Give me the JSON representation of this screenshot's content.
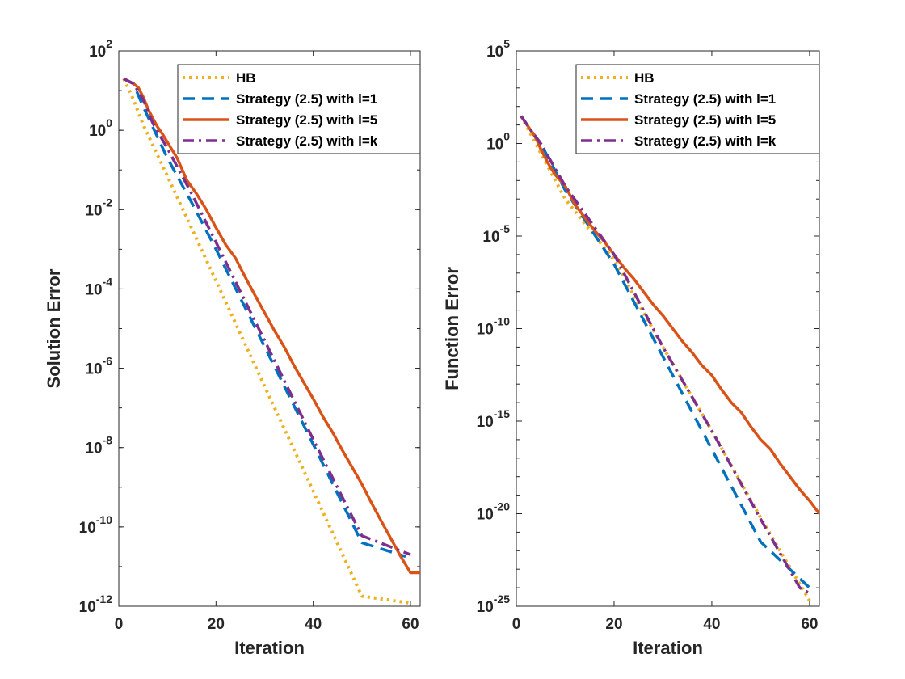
{
  "chart_data": [
    {
      "type": "line",
      "xlabel": "Iteration",
      "ylabel": "Solution Error",
      "xlim": [
        0,
        62
      ],
      "ylim": [
        1e-12,
        100
      ],
      "yscale": "log",
      "grid": false,
      "legend_position": "top-right",
      "xticks": [
        0,
        20,
        40,
        60
      ],
      "xtick_labels": [
        "0",
        "20",
        "40",
        "60"
      ],
      "yticks": [
        1e-12,
        1e-10,
        1e-08,
        1e-06,
        0.0001,
        0.01,
        1,
        100
      ],
      "ytick_labels": [
        {
          "base": "10",
          "exp": "-12"
        },
        {
          "base": "10",
          "exp": "-10"
        },
        {
          "base": "10",
          "exp": "-8"
        },
        {
          "base": "10",
          "exp": "-6"
        },
        {
          "base": "10",
          "exp": "-4"
        },
        {
          "base": "10",
          "exp": "-2"
        },
        {
          "base": "10",
          "exp": "0"
        },
        {
          "base": "10",
          "exp": "2"
        }
      ],
      "series": [
        {
          "name": "HB",
          "color": "#EDB120",
          "dash": "dotted",
          "x": [
            1,
            3,
            5,
            10,
            20,
            30,
            40,
            50,
            60
          ],
          "y": [
            20,
            6,
            1.4,
            0.07,
            0.00016,
            3.5e-07,
            8e-10,
            1.8e-12,
            1.2e-12
          ]
        },
        {
          "name": "Strategy (2.5) with l=1",
          "color": "#0072BD",
          "dash": "dashed",
          "x": [
            1,
            3,
            5,
            7,
            10,
            15,
            20,
            30,
            40,
            50,
            59
          ],
          "y": [
            20,
            15,
            4,
            1.2,
            0.2,
            0.015,
            0.001,
            3.5e-06,
            1.2e-08,
            4e-11,
            1.8e-11
          ]
        },
        {
          "name": "Strategy (2.5) with l=5",
          "color": "#D95319",
          "dash": "solid",
          "x": [
            1,
            2,
            3,
            4,
            5,
            6,
            7,
            8,
            9,
            10,
            12,
            14,
            16,
            18,
            20,
            22,
            24,
            26,
            28,
            30,
            32,
            34,
            36,
            38,
            40,
            42,
            44,
            46,
            48,
            50,
            52,
            54,
            56,
            58,
            60,
            62
          ],
          "y": [
            20,
            17,
            15,
            12,
            7,
            3.5,
            2.0,
            1.2,
            0.8,
            0.5,
            0.2,
            0.055,
            0.025,
            0.01,
            0.0035,
            0.0013,
            0.0006,
            0.0002,
            7e-05,
            2.5e-05,
            9e-06,
            3.5e-06,
            1.2e-06,
            4.5e-07,
            1.7e-07,
            6e-08,
            2.4e-08,
            8.5e-09,
            3.2e-09,
            1.2e-09,
            4e-10,
            1.4e-10,
            5e-11,
            1.8e-11,
            7e-12,
            7e-12
          ]
        },
        {
          "name": "Strategy (2.5) with l=k",
          "color": "#7E2F8E",
          "dash": "dashdot",
          "x": [
            1,
            3,
            5,
            7,
            10,
            15,
            20,
            30,
            40,
            50,
            58,
            60
          ],
          "y": [
            20,
            15,
            6,
            1.5,
            0.35,
            0.025,
            0.0015,
            5e-06,
            1.6e-08,
            6e-11,
            2.5e-11,
            2e-11
          ]
        }
      ]
    },
    {
      "type": "line",
      "xlabel": "Iteration",
      "ylabel": "Function Error",
      "xlim": [
        0,
        62
      ],
      "ylim": [
        1e-25,
        100000.0
      ],
      "yscale": "log",
      "grid": false,
      "legend_position": "top-right",
      "xticks": [
        0,
        20,
        40,
        60
      ],
      "xtick_labels": [
        "0",
        "20",
        "40",
        "60"
      ],
      "yticks": [
        1e-25,
        1e-20,
        1e-15,
        1e-10,
        1e-05,
        1,
        100000.0
      ],
      "ytick_labels": [
        {
          "base": "10",
          "exp": "-25"
        },
        {
          "base": "10",
          "exp": "-20"
        },
        {
          "base": "10",
          "exp": "-15"
        },
        {
          "base": "10",
          "exp": "-10"
        },
        {
          "base": "10",
          "exp": "-5"
        },
        {
          "base": "10",
          "exp": "0"
        },
        {
          "base": "10",
          "exp": "5"
        }
      ],
      "series": [
        {
          "name": "HB",
          "color": "#EDB120",
          "dash": "dotted",
          "x": [
            1,
            3,
            5,
            10,
            20,
            30,
            40,
            50,
            60
          ],
          "y": [
            30,
            3,
            0.3,
            0.001,
            5e-07,
            1e-11,
            3e-16,
            6e-21,
            2e-25
          ]
        },
        {
          "name": "Strategy (2.5) with l=1",
          "color": "#0072BD",
          "dash": "dashed",
          "x": [
            1,
            3,
            5,
            7,
            10,
            15,
            20,
            30,
            40,
            50,
            60
          ],
          "y": [
            30,
            5,
            1,
            0.1,
            0.003,
            3e-05,
            3e-07,
            3e-12,
            3e-17,
            3e-22,
            1e-24
          ]
        },
        {
          "name": "Strategy (2.5) with l=5",
          "color": "#D95319",
          "dash": "solid",
          "x": [
            1,
            2,
            3,
            4,
            5,
            6,
            7,
            8,
            10,
            12,
            14,
            16,
            18,
            20,
            22,
            24,
            26,
            28,
            30,
            32,
            34,
            36,
            38,
            40,
            42,
            44,
            46,
            48,
            50,
            52,
            54,
            56,
            58,
            60,
            62
          ],
          "y": [
            30,
            12,
            5,
            2,
            0.5,
            0.15,
            0.05,
            0.02,
            0.005,
            0.0005,
            0.0001,
            2e-05,
            5e-06,
            1e-06,
            2e-07,
            5e-08,
            1e-08,
            2e-09,
            5e-10,
            1e-10,
            2e-11,
            5e-12,
            1e-12,
            3e-13,
            5e-14,
            1e-14,
            3e-15,
            5e-16,
            1e-16,
            3e-17,
            5e-18,
            1e-18,
            2e-19,
            5e-20,
            1e-20
          ]
        },
        {
          "name": "Strategy (2.5) with l=k",
          "color": "#7E2F8E",
          "dash": "dashdot",
          "x": [
            1,
            3,
            5,
            10,
            20,
            30,
            40,
            50,
            58,
            60
          ],
          "y": [
            30,
            5,
            1,
            0.005,
            1e-06,
            1e-11,
            3e-16,
            5e-21,
            1e-24,
            5e-25
          ]
        }
      ]
    }
  ]
}
